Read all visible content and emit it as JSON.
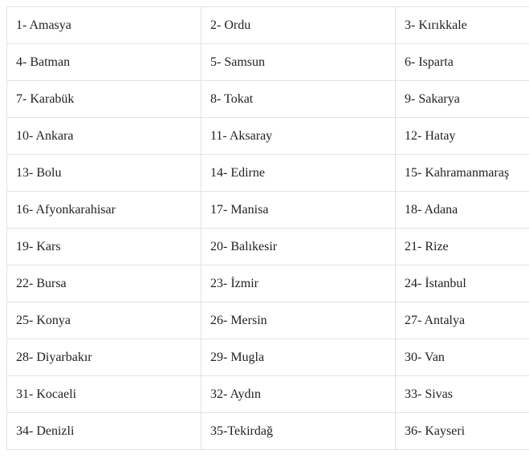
{
  "table": {
    "description": "numbered-turkish-province-list",
    "columns": 3,
    "rows": [
      [
        "1- Amasya",
        "2- Ordu",
        "3- Kırıkkale"
      ],
      [
        "4- Batman",
        "5- Samsun",
        "6- Isparta"
      ],
      [
        "7- Karabük",
        "8- Tokat",
        "9- Sakarya"
      ],
      [
        "10- Ankara",
        "11- Aksaray",
        "12- Hatay"
      ],
      [
        "13- Bolu",
        "14- Edirne",
        "15- Kahramanmaraş"
      ],
      [
        "16- Afyonkarahisar",
        "17- Manisa",
        "18- Adana"
      ],
      [
        "19- Kars",
        "20- Balıkesir",
        "21- Rize"
      ],
      [
        "22- Bursa",
        "23- İzmir",
        "24- İstanbul"
      ],
      [
        "25- Konya",
        "26- Mersin",
        "27- Antalya"
      ],
      [
        "28- Diyarbakır",
        "29- Mugla",
        "30- Van"
      ],
      [
        "31- Kocaeli",
        "32- Aydın",
        "33- Sivas"
      ],
      [
        "34- Denizli",
        "35-Tekirdağ",
        "36- Kayseri"
      ]
    ]
  },
  "colors": {
    "border": "#e2e2e2",
    "text": "#222222",
    "background": "#ffffff"
  }
}
